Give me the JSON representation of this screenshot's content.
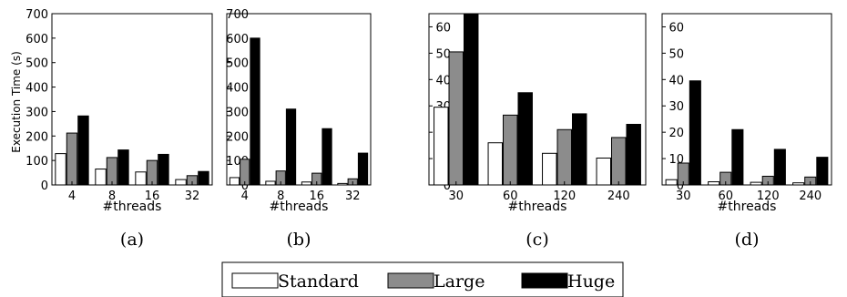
{
  "figure": {
    "y_axis_label": "Execution Time (s)",
    "legend": [
      {
        "name": "Standard",
        "color": "#ffffff"
      },
      {
        "name": "Large",
        "color": "#8c8c8c"
      },
      {
        "name": "Huge",
        "color": "#000000"
      }
    ]
  },
  "chart_data": [
    {
      "type": "bar",
      "caption": "(a)",
      "xlabel": "#threads",
      "categories": [
        "4",
        "8",
        "16",
        "32"
      ],
      "ylim": [
        0,
        700
      ],
      "yticks": [
        0,
        100,
        200,
        300,
        400,
        500,
        600,
        700
      ],
      "series": [
        {
          "name": "Standard",
          "values": [
            128,
            65,
            53,
            22
          ]
        },
        {
          "name": "Large",
          "values": [
            212,
            112,
            100,
            38
          ]
        },
        {
          "name": "Huge",
          "values": [
            282,
            143,
            125,
            55
          ]
        }
      ]
    },
    {
      "type": "bar",
      "caption": "(b)",
      "xlabel": "#threads",
      "categories": [
        "4",
        "8",
        "16",
        "32"
      ],
      "ylim": [
        0,
        700
      ],
      "yticks": [
        0,
        100,
        200,
        300,
        400,
        500,
        600,
        700
      ],
      "series": [
        {
          "name": "Standard",
          "values": [
            30,
            15,
            12,
            6
          ]
        },
        {
          "name": "Large",
          "values": [
            105,
            57,
            48,
            25
          ]
        },
        {
          "name": "Huge",
          "values": [
            600,
            310,
            230,
            130
          ]
        }
      ]
    },
    {
      "type": "bar",
      "caption": "(c)",
      "xlabel": "#threads",
      "categories": [
        "30",
        "60",
        "120",
        "240"
      ],
      "ylim": [
        0,
        65
      ],
      "yticks": [
        0,
        10,
        20,
        30,
        40,
        50,
        60
      ],
      "series": [
        {
          "name": "Standard",
          "values": [
            29.5,
            16,
            12,
            10.2
          ]
        },
        {
          "name": "Large",
          "values": [
            50.5,
            26.5,
            21,
            18
          ]
        },
        {
          "name": "Huge",
          "values": [
            65,
            35,
            27,
            23
          ]
        }
      ]
    },
    {
      "type": "bar",
      "caption": "(d)",
      "xlabel": "#threads",
      "categories": [
        "30",
        "60",
        "120",
        "240"
      ],
      "ylim": [
        0,
        65
      ],
      "yticks": [
        0,
        10,
        20,
        30,
        40,
        50,
        60
      ],
      "series": [
        {
          "name": "Standard",
          "values": [
            2,
            1.2,
            1,
            0.8
          ]
        },
        {
          "name": "Large",
          "values": [
            8.3,
            4.8,
            3.3,
            3
          ]
        },
        {
          "name": "Huge",
          "values": [
            39.5,
            21,
            13.5,
            10.5
          ]
        }
      ]
    }
  ]
}
